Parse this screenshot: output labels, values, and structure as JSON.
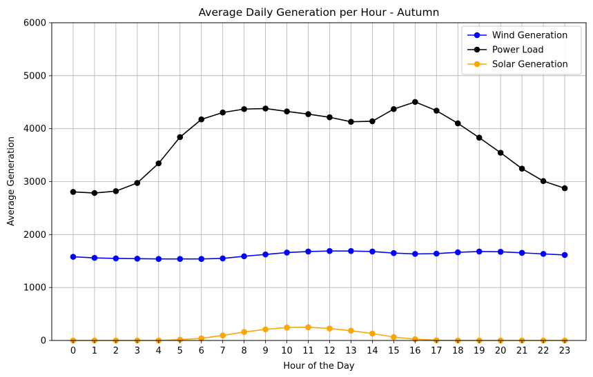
{
  "chart_data": {
    "type": "line",
    "title": "Average Daily Generation per Hour - Autumn",
    "xlabel": "Hour of the Day",
    "ylabel": "Average Generation",
    "x": [
      0,
      1,
      2,
      3,
      4,
      5,
      6,
      7,
      8,
      9,
      10,
      11,
      12,
      13,
      14,
      15,
      16,
      17,
      18,
      19,
      20,
      21,
      22,
      23
    ],
    "xticks": [
      "0",
      "1",
      "2",
      "3",
      "4",
      "5",
      "6",
      "7",
      "8",
      "9",
      "10",
      "11",
      "12",
      "13",
      "14",
      "15",
      "16",
      "17",
      "18",
      "19",
      "20",
      "21",
      "22",
      "23"
    ],
    "ylim": [
      0,
      6000
    ],
    "yticks": [
      "0",
      "1000",
      "2000",
      "3000",
      "4000",
      "5000",
      "6000"
    ],
    "grid": true,
    "legend_position": "top-right",
    "series": [
      {
        "name": "Wind Generation",
        "color": "#0000ff",
        "marker": "circle",
        "values": [
          1580,
          1560,
          1550,
          1545,
          1540,
          1540,
          1540,
          1550,
          1590,
          1625,
          1660,
          1680,
          1690,
          1690,
          1680,
          1650,
          1635,
          1640,
          1665,
          1680,
          1675,
          1655,
          1635,
          1615
        ]
      },
      {
        "name": "Power Load",
        "color": "#000000",
        "marker": "circle",
        "values": [
          2805,
          2785,
          2820,
          2975,
          3345,
          3840,
          4175,
          4305,
          4370,
          4380,
          4325,
          4275,
          4215,
          4130,
          4140,
          4370,
          4505,
          4340,
          4100,
          3830,
          3545,
          3245,
          3010,
          2875
        ]
      },
      {
        "name": "Solar Generation",
        "color": "#ffa500",
        "marker": "circle",
        "values": [
          0,
          0,
          0,
          0,
          0,
          15,
          40,
          95,
          160,
          210,
          245,
          250,
          225,
          185,
          130,
          65,
          25,
          5,
          0,
          0,
          0,
          0,
          0,
          0
        ]
      }
    ]
  }
}
